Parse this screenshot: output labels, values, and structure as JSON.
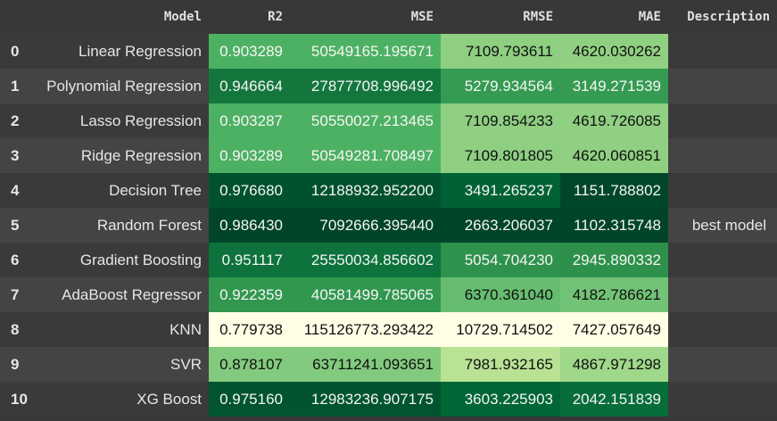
{
  "table": {
    "columns": [
      "Model",
      "R2",
      "MSE",
      "RMSE",
      "MAE",
      "Description"
    ],
    "rows": [
      {
        "index": "0",
        "model": "Linear Regression",
        "r2": "0.903289",
        "mse": "50549165.195671",
        "rmse": "7109.793611",
        "mae": "4620.030262",
        "description": ""
      },
      {
        "index": "1",
        "model": "Polynomial Regression",
        "r2": "0.946664",
        "mse": "27877708.996492",
        "rmse": "5279.934564",
        "mae": "3149.271539",
        "description": ""
      },
      {
        "index": "2",
        "model": "Lasso Regression",
        "r2": "0.903287",
        "mse": "50550027.213465",
        "rmse": "7109.854233",
        "mae": "4619.726085",
        "description": ""
      },
      {
        "index": "3",
        "model": "Ridge Regression",
        "r2": "0.903289",
        "mse": "50549281.708497",
        "rmse": "7109.801805",
        "mae": "4620.060851",
        "description": ""
      },
      {
        "index": "4",
        "model": "Decision Tree",
        "r2": "0.976680",
        "mse": "12188932.952200",
        "rmse": "3491.265237",
        "mae": "1151.788802",
        "description": ""
      },
      {
        "index": "5",
        "model": "Random Forest",
        "r2": "0.986430",
        "mse": "7092666.395440",
        "rmse": "2663.206037",
        "mae": "1102.315748",
        "description": "best model"
      },
      {
        "index": "6",
        "model": "Gradient Boosting",
        "r2": "0.951117",
        "mse": "25550034.856602",
        "rmse": "5054.704230",
        "mae": "2945.890332",
        "description": ""
      },
      {
        "index": "7",
        "model": "AdaBoost Regressor",
        "r2": "0.922359",
        "mse": "40581499.785065",
        "rmse": "6370.361040",
        "mae": "4182.786621",
        "description": ""
      },
      {
        "index": "8",
        "model": "KNN",
        "r2": "0.779738",
        "mse": "115126773.293422",
        "rmse": "10729.714502",
        "mae": "7427.057649",
        "description": ""
      },
      {
        "index": "9",
        "model": "SVR",
        "r2": "0.878107",
        "mse": "63711241.093651",
        "rmse": "7981.932165",
        "mae": "4867.971298",
        "description": ""
      },
      {
        "index": "10",
        "model": "XG Boost",
        "r2": "0.975160",
        "mse": "12983236.907175",
        "rmse": "3603.225903",
        "mae": "2042.151839",
        "description": ""
      }
    ]
  },
  "colors": {
    "background": "#383838",
    "gradient": [
      "#ffffe5",
      "#f7fcb9",
      "#d9f0a3",
      "#addd8e",
      "#78c679",
      "#41ab5d",
      "#238443",
      "#006837",
      "#004529"
    ]
  }
}
